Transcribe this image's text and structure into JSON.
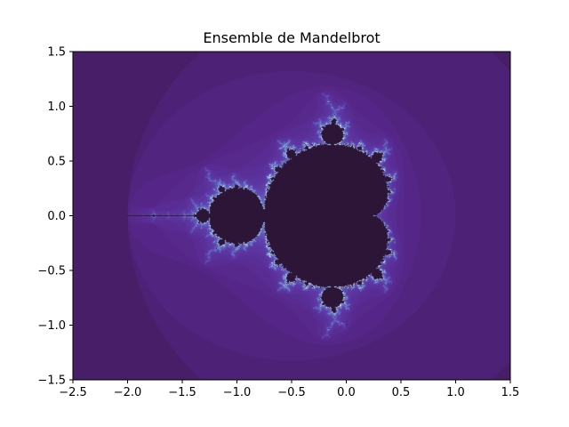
{
  "chart_data": {
    "type": "heatmap",
    "title": "Ensemble de Mandelbrot",
    "xlabel": "",
    "ylabel": "",
    "xlim": [
      -2.5,
      1.5
    ],
    "ylim": [
      -1.5,
      1.5
    ],
    "x_ticks": [
      -2.5,
      -2.0,
      -1.5,
      -1.0,
      -0.5,
      0.0,
      0.5,
      1.0,
      1.5
    ],
    "x_tick_labels": [
      "−2.5",
      "−2.0",
      "−1.5",
      "−1.0",
      "−0.5",
      "0.0",
      "0.5",
      "1.0",
      "1.5"
    ],
    "y_ticks": [
      -1.5,
      -1.0,
      -0.5,
      0.0,
      0.5,
      1.0,
      1.5
    ],
    "y_tick_labels": [
      "−1.5",
      "−1.0",
      "−0.5",
      "0.0",
      "0.5",
      "1.0",
      "1.5"
    ],
    "grid": false,
    "function": "escape iterations of z -> z^2 + c",
    "max_iterations": 100,
    "colormap": "twilight-shifted-like",
    "colors": {
      "set_interior": "#2d1537",
      "outer_background": "#3f1a52",
      "mid_band": "#56278a",
      "boundary_blue": "#7fa6d6",
      "boundary_white": "#ffffff",
      "axis_color": "#000000"
    }
  }
}
